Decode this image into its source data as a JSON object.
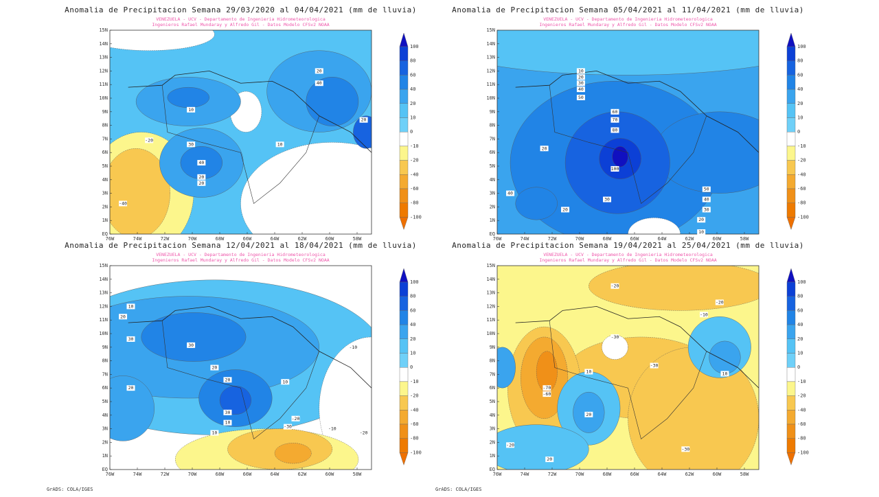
{
  "panels": [
    {
      "title": "Anomalia de Precipitacion Semana 29/03/2020 al 04/04/2021 (mm de lluvia)",
      "subtitle": [
        "VENEZUELA - UCV - Departamento de Ingenieria Hidrometeorologica",
        "Ingenieros Rafael Mundaray y Alfredo Gil - Datos Modelo CFSv2 NOAA"
      ],
      "contour_labels": [
        "20",
        "40",
        "10",
        "30",
        "20",
        "40",
        "20",
        "-20",
        "-40",
        "10",
        "20"
      ]
    },
    {
      "title": "Anomalia de Precipitacion Semana 05/04/2021 al 11/04/2021 (mm de lluvia)",
      "subtitle": [
        "VENEZUELA - UCV - Departamento de Ingenieria Hidrometeorologica",
        "Ingenieros Rafael Mundaray y Alfredo Gil - Datos Modelo CFSv2 NOAA"
      ],
      "contour_labels": [
        "10",
        "20",
        "30",
        "40",
        "50",
        "60",
        "70",
        "80",
        "100",
        "30",
        "40",
        "20",
        "20",
        "50",
        "40",
        "30",
        "20",
        "10"
      ]
    },
    {
      "title": "Anomalia de Precipitacion Semana 12/04/2021 al 18/04/2021 (mm de lluvia)",
      "subtitle": [
        "VENEZUELA - UCV - Departamento de Ingenieria Hidrometeorologica",
        "Ingenieros Rafael Mundaray y Alfredo Gil - Datos Modelo CFSv2 NOAA"
      ],
      "contour_labels": [
        "10",
        "20",
        "30",
        "30",
        "20",
        "20",
        "30",
        "10",
        "20",
        "10",
        "-10",
        "-20",
        "-30",
        "-10",
        "-20",
        "10"
      ]
    },
    {
      "title": "Anomalia de Precipitacion Semana 19/04/2021 al 25/04/2021 (mm de lluvia)",
      "subtitle": [
        "VENEZUELA - UCV - Departamento de Ingenieria Hidrometeorologica",
        "Ingenieros Rafael Mundaray y Alfredo Gil - Datos Modelo CFSv2 NOAA"
      ],
      "contour_labels": [
        "-20",
        "-20",
        "-10",
        "-30",
        "-70",
        "-60",
        "10",
        "20",
        "-30",
        "10",
        "-30",
        "-20",
        "20"
      ]
    }
  ],
  "lat_labels": [
    "EQ",
    "1N",
    "2N",
    "3N",
    "4N",
    "5N",
    "6N",
    "7N",
    "8N",
    "9N",
    "10N",
    "11N",
    "12N",
    "13N",
    "14N",
    "15N"
  ],
  "lon_labels": [
    "76W",
    "74W",
    "72W",
    "70W",
    "68W",
    "66W",
    "64W",
    "62W",
    "60W",
    "58W"
  ],
  "colorbar": [
    "100",
    "80",
    "60",
    "40",
    "20",
    "10",
    "0",
    "-10",
    "-20",
    "-40",
    "-60",
    "-80",
    "-100"
  ],
  "footer": "GrADS: COLA/IGES"
}
